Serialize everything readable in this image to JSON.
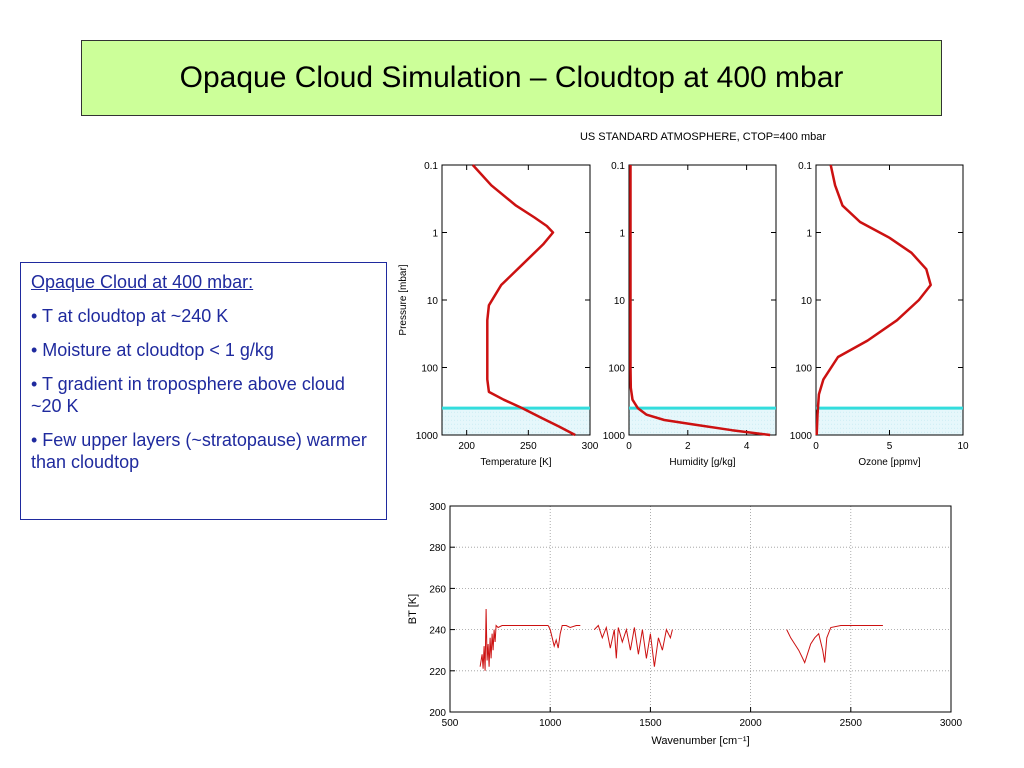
{
  "slide": {
    "title": "Opaque Cloud Simulation – Cloudtop at 400 mbar"
  },
  "notes": {
    "heading": "Opaque Cloud at 400 mbar:",
    "points": [
      "• T at cloudtop at ~240 K",
      "• Moisture at cloudtop < 1 g/kg",
      "• T gradient in troposphere above cloud ~20 K",
      "• Few upper layers (~stratopause) warmer than cloudtop"
    ]
  },
  "colors": {
    "profile": "#cc1111",
    "cloud_line": "#33dddd",
    "box_border": "#1f2a9e",
    "title_bg": "#ccff99"
  },
  "chart_data": [
    {
      "type": "line",
      "supertitle": "US STANDARD ATMOSPHERE, CTOP=400 mbar",
      "xlabel": "Temperature [K]",
      "ylabel": "Pressure [mbar]",
      "xlim": [
        180,
        300
      ],
      "ylim": [
        1000,
        0.1
      ],
      "y_scale": "log",
      "x_ticks": [
        "200",
        "250",
        "300"
      ],
      "y_ticks": [
        "0.1",
        "1",
        "10",
        "100",
        "1000"
      ],
      "cloud_top_pressure": 400,
      "series": [
        {
          "x": [
            205,
            220,
            240,
            255,
            265,
            270,
            262,
            245,
            228,
            218,
            216.7,
            216.7,
            216.7,
            218,
            230,
            245,
            260,
            275,
            288
          ],
          "y": [
            0.1,
            0.2,
            0.4,
            0.6,
            0.8,
            1,
            1.5,
            3,
            6,
            12,
            20,
            50,
            150,
            230,
            300,
            400,
            550,
            750,
            1000
          ]
        }
      ]
    },
    {
      "type": "line",
      "xlabel": "Humidity [g/kg]",
      "xlim": [
        0,
        5
      ],
      "ylim": [
        1000,
        0.1
      ],
      "y_scale": "log",
      "x_ticks": [
        "0",
        "2",
        "4"
      ],
      "y_ticks": [
        "0.1",
        "1",
        "10",
        "100",
        "1000"
      ],
      "cloud_top_pressure": 400,
      "series": [
        {
          "x": [
            0.05,
            0.05,
            0.05,
            0.05,
            0.06,
            0.12,
            0.3,
            0.6,
            1.2,
            2.2,
            3.5,
            4.8
          ],
          "y": [
            0.1,
            1,
            10,
            100,
            200,
            300,
            400,
            500,
            600,
            700,
            850,
            1000
          ]
        }
      ]
    },
    {
      "type": "line",
      "xlabel": "Ozone [ppmv]",
      "xlim": [
        0,
        10
      ],
      "ylim": [
        1000,
        0.1
      ],
      "y_scale": "log",
      "x_ticks": [
        "0",
        "5",
        "10"
      ],
      "y_ticks": [
        "0.1",
        "1",
        "10",
        "100",
        "1000"
      ],
      "cloud_top_pressure": 400,
      "series": [
        {
          "x": [
            1.0,
            1.3,
            1.8,
            3.0,
            5.0,
            6.5,
            7.5,
            7.8,
            7.0,
            5.5,
            3.5,
            1.5,
            0.5,
            0.2,
            0.1,
            0.05
          ],
          "y": [
            0.1,
            0.2,
            0.4,
            0.7,
            1.2,
            2,
            3.5,
            6,
            10,
            20,
            40,
            70,
            150,
            250,
            500,
            1000
          ]
        }
      ]
    },
    {
      "type": "line",
      "xlabel": "Wavenumber [cm⁻¹]",
      "ylabel": "BT [K]",
      "xlim": [
        500,
        3000
      ],
      "ylim": [
        200,
        300
      ],
      "x_ticks": [
        "500",
        "1000",
        "1500",
        "2000",
        "2500",
        "3000"
      ],
      "y_ticks": [
        "200",
        "220",
        "240",
        "260",
        "280",
        "300"
      ],
      "grid": true,
      "segments": [
        {
          "x": [
            650,
            660,
            665,
            670,
            675,
            680,
            685,
            690,
            695,
            700,
            705,
            710,
            715,
            720,
            725,
            730,
            740,
            760,
            800,
            850,
            900,
            950,
            990
          ],
          "y": [
            222,
            228,
            221,
            232,
            220,
            250,
            225,
            233,
            222,
            236,
            226,
            238,
            230,
            240,
            234,
            242,
            241,
            242,
            242,
            242,
            242,
            242,
            242
          ]
        },
        {
          "x": [
            990,
            1000,
            1010,
            1020,
            1030,
            1040,
            1050,
            1060,
            1080,
            1100,
            1130,
            1150
          ],
          "y": [
            242,
            240,
            236,
            232,
            235,
            231,
            238,
            242,
            242,
            241,
            242,
            242
          ]
        },
        {
          "x": [
            1220,
            1240,
            1260,
            1280,
            1300,
            1320,
            1330,
            1340,
            1360,
            1380,
            1400,
            1420,
            1440,
            1460,
            1480,
            1500,
            1520,
            1540,
            1560,
            1580,
            1600,
            1610
          ],
          "y": [
            240,
            242,
            236,
            241,
            231,
            240,
            226,
            241,
            234,
            240,
            230,
            241,
            228,
            240,
            226,
            238,
            222,
            236,
            230,
            240,
            236,
            240
          ]
        },
        {
          "x": [
            2180,
            2200,
            2220,
            2240,
            2260,
            2270,
            2280,
            2300,
            2320,
            2340,
            2360,
            2370,
            2380,
            2400,
            2450,
            2500,
            2550,
            2600,
            2660
          ],
          "y": [
            240,
            236,
            233,
            230,
            226,
            224,
            227,
            233,
            236,
            238,
            230,
            224,
            236,
            241,
            242,
            242,
            242,
            242,
            242
          ]
        }
      ]
    }
  ]
}
